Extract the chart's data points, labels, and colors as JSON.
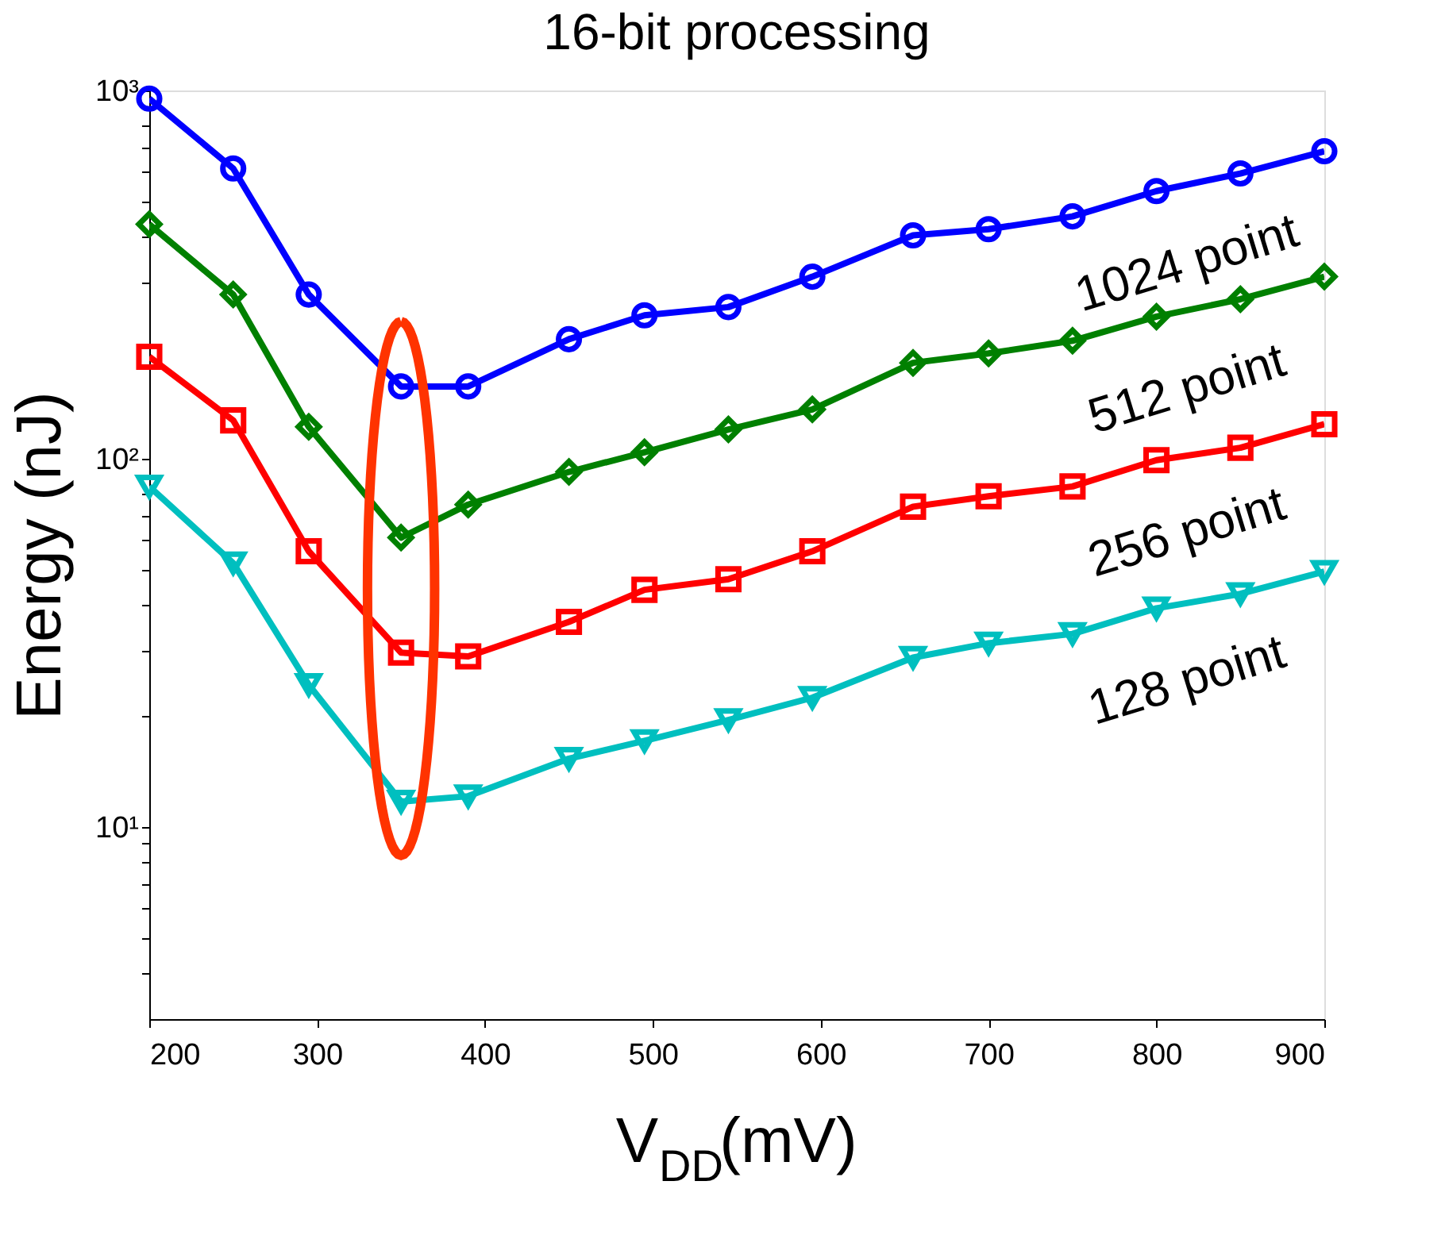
{
  "chart_data": {
    "type": "line",
    "title": "16-bit processing",
    "xlabel": "V$_{DD}$(mV)",
    "ylabel": "Energy (nJ)",
    "x": [
      200,
      250,
      295,
      350,
      390,
      450,
      495,
      545,
      595,
      655,
      700,
      750,
      800,
      850,
      900
    ],
    "series": [
      {
        "name": "1024 point",
        "color": "#0000ff",
        "marker": "circle",
        "values": [
          950,
          614,
          279,
          157,
          157,
          211,
          245,
          258,
          312,
          404,
          420,
          455,
          533,
          595,
          684
        ]
      },
      {
        "name": "512 point",
        "color": "#008000",
        "marker": "diamond",
        "values": [
          433,
          279,
          122,
          61,
          75,
          92,
          104,
          120,
          136,
          182,
          193,
          209,
          243,
          271,
          312
        ]
      },
      {
        "name": "256 point",
        "color": "#ff0000",
        "marker": "square",
        "values": [
          189,
          127,
          56,
          29.7,
          29,
          36,
          44,
          47,
          56,
          74,
          79,
          84,
          99,
          107,
          124
        ]
      },
      {
        "name": "128 point",
        "color": "#00bfbf",
        "marker": "triangle",
        "values": [
          84,
          52,
          24.3,
          11.7,
          12.1,
          15.3,
          17.1,
          19.5,
          22.4,
          28.8,
          31.5,
          33.4,
          39.2,
          42.9,
          49.3
        ]
      }
    ],
    "log": "y",
    "xlim": [
      200,
      900
    ],
    "ylim": [
      3,
      1000
    ],
    "xticks": [
      200,
      300,
      400,
      500,
      600,
      700,
      800,
      900
    ],
    "yticks": [
      {
        "value": 4,
        "label": null
      },
      {
        "value": 5,
        "label": null
      },
      {
        "value": 6,
        "label": null
      },
      {
        "value": 7,
        "label": null
      },
      {
        "value": 8,
        "label": null
      },
      {
        "value": 9,
        "label": null
      },
      {
        "value": 10,
        "label": "10¹"
      },
      {
        "value": 20,
        "label": null
      },
      {
        "value": 30,
        "label": null
      },
      {
        "value": 40,
        "label": null
      },
      {
        "value": 50,
        "label": null
      },
      {
        "value": 60,
        "label": null
      },
      {
        "value": 70,
        "label": null
      },
      {
        "value": 80,
        "label": null
      },
      {
        "value": 90,
        "label": null
      },
      {
        "value": 100,
        "label": "10²"
      },
      {
        "value": 200,
        "label": null
      },
      {
        "value": 300,
        "label": null
      },
      {
        "value": 400,
        "label": null
      },
      {
        "value": 500,
        "label": null
      },
      {
        "value": 600,
        "label": null
      },
      {
        "value": 700,
        "label": null
      },
      {
        "value": 800,
        "label": null
      },
      {
        "value": 900,
        "label": null
      },
      {
        "value": 1000,
        "label": "10³"
      }
    ],
    "grid": false,
    "legend": false,
    "line_style": "solid"
  }
}
